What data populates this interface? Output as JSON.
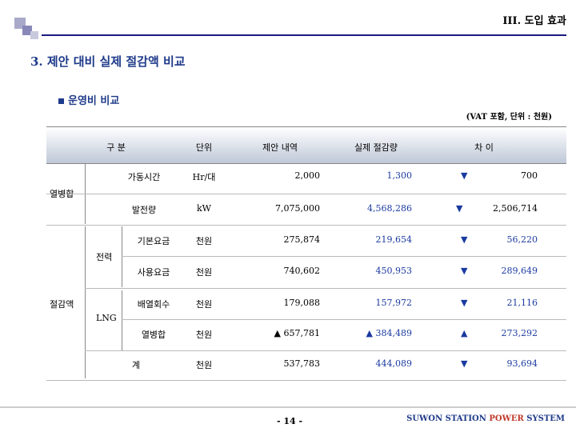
{
  "header": {
    "section": "III. 도입 효과"
  },
  "title": "3. 제안 대비 실제 절감액 비교",
  "subtitle": "운영비 비교",
  "unit_note": "(VAT 포함, 단위 : 천원)",
  "table": {
    "columns": [
      "구  분",
      "단위",
      "제안 내역",
      "실제 절감량",
      "차 이"
    ],
    "groups": {
      "cogeneration": "열병합",
      "savings": "절감액",
      "electricity": "전력",
      "lng": "LNG"
    },
    "rows": [
      {
        "item": "가동시간",
        "unit": "Hr/대",
        "proposal": "2,000",
        "actual": "1,300",
        "diff_mark": "▼",
        "diff": "700"
      },
      {
        "item": "발전량",
        "unit": "kW",
        "proposal": "7,075,000",
        "actual": "4,568,286",
        "diff_mark": "▼",
        "diff": "2,506,714"
      },
      {
        "item": "기본요금",
        "unit": "천원",
        "proposal": "275,874",
        "actual": "219,654",
        "diff_mark": "▼",
        "diff": "56,220"
      },
      {
        "item": "사용요금",
        "unit": "천원",
        "proposal": "740,602",
        "actual": "450,953",
        "diff_mark": "▼",
        "diff": "289,649"
      },
      {
        "item": "배열회수",
        "unit": "천원",
        "proposal": "179,088",
        "actual": "157,972",
        "diff_mark": "▼",
        "diff": "21,116"
      },
      {
        "item": "열병합",
        "unit": "천원",
        "proposal": "▲ 657,781",
        "actual": "▲ 384,489",
        "diff_mark": "▲",
        "diff": "273,292"
      },
      {
        "item": "계",
        "unit": "천원",
        "proposal": "537,783",
        "actual": "444,089",
        "diff_mark": "▼",
        "diff": "93,694"
      }
    ]
  },
  "footer": {
    "page": "- 14 -",
    "brand_a": "SUWON STATION ",
    "brand_b": "POWER",
    "brand_c": " SYSTEM"
  }
}
